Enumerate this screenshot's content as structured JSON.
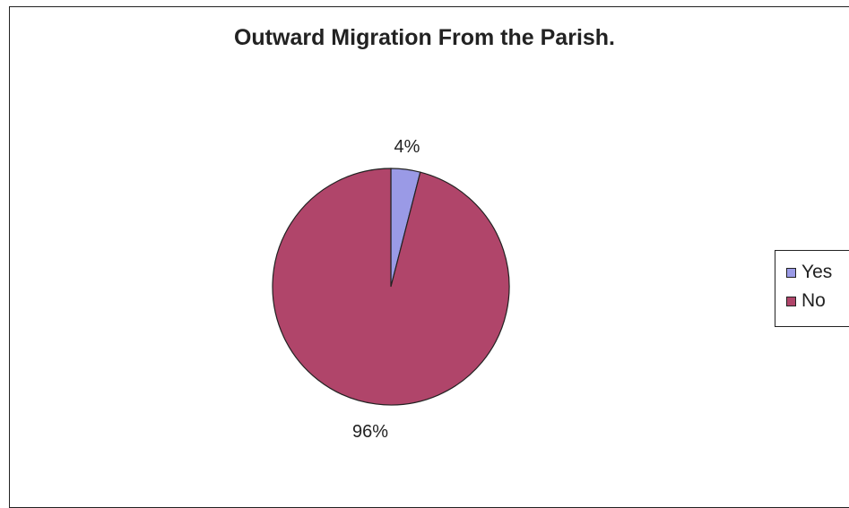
{
  "chart_data": {
    "type": "pie",
    "title": "Outward Migration From the Parish.",
    "categories": [
      "Yes",
      "No"
    ],
    "values": [
      4,
      96
    ],
    "data_labels": [
      "4%",
      "96%"
    ],
    "colors": [
      "#9a9ae6",
      "#b0456a"
    ],
    "legend_position": "right",
    "legend": [
      "Yes",
      "No"
    ]
  }
}
